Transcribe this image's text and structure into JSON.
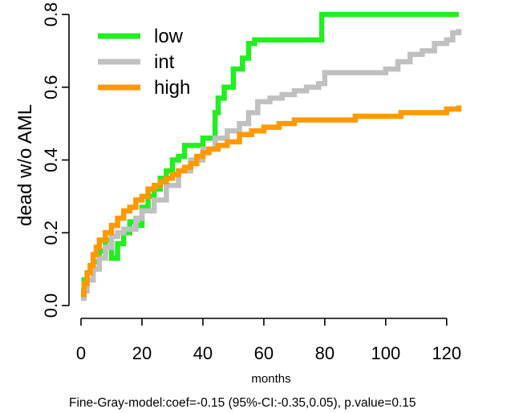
{
  "chart_data": {
    "type": "line",
    "step": true,
    "xlabel": "months",
    "ylabel": "dead w/o AML",
    "footnote": "Fine-Gray-model:coef=-0.15 (95%-CI:-0.35,0.05), p.value=0.15",
    "xlim": [
      0,
      124
    ],
    "ylim": [
      0,
      0.8
    ],
    "x_ticks": [
      0,
      20,
      40,
      60,
      80,
      100,
      120
    ],
    "y_ticks": [
      0.0,
      0.2,
      0.4,
      0.6,
      0.8
    ],
    "y_tick_labels": [
      "0.0",
      "0.2",
      "0.4",
      "0.6",
      "0.8"
    ],
    "legend_position": "top-left",
    "series": [
      {
        "name": "low",
        "color": "#22ee22",
        "x": [
          0,
          1,
          2,
          4,
          6,
          8,
          10,
          12,
          14,
          16,
          18,
          20,
          22,
          24,
          26,
          28,
          30,
          32,
          34,
          40,
          44,
          45,
          47,
          50,
          53,
          55,
          57,
          63,
          70,
          78,
          79,
          124
        ],
        "y": [
          0.04,
          0.07,
          0.09,
          0.12,
          0.15,
          0.18,
          0.13,
          0.17,
          0.2,
          0.23,
          0.22,
          0.27,
          0.3,
          0.32,
          0.35,
          0.37,
          0.4,
          0.41,
          0.44,
          0.46,
          0.53,
          0.57,
          0.6,
          0.65,
          0.68,
          0.72,
          0.73,
          0.73,
          0.73,
          0.73,
          0.8,
          0.8
        ]
      },
      {
        "name": "int",
        "color": "#c0c0c0",
        "x": [
          0,
          1,
          2,
          4,
          6,
          8,
          10,
          12,
          14,
          18,
          20,
          24,
          28,
          32,
          36,
          40,
          44,
          48,
          52,
          55,
          58,
          62,
          66,
          70,
          74,
          78,
          80,
          85,
          90,
          96,
          100,
          104,
          108,
          112,
          116,
          120,
          122,
          124
        ],
        "y": [
          0.02,
          0.04,
          0.07,
          0.1,
          0.13,
          0.16,
          0.19,
          0.2,
          0.21,
          0.24,
          0.26,
          0.29,
          0.33,
          0.37,
          0.4,
          0.43,
          0.46,
          0.48,
          0.5,
          0.53,
          0.56,
          0.57,
          0.58,
          0.59,
          0.6,
          0.61,
          0.64,
          0.64,
          0.64,
          0.64,
          0.65,
          0.67,
          0.69,
          0.7,
          0.72,
          0.73,
          0.75,
          0.76
        ]
      },
      {
        "name": "high",
        "color": "#ff9900",
        "x": [
          0,
          1,
          2,
          3,
          4,
          5,
          6,
          8,
          10,
          12,
          14,
          16,
          18,
          20,
          22,
          24,
          26,
          28,
          30,
          32,
          34,
          36,
          38,
          40,
          42,
          45,
          48,
          52,
          56,
          60,
          65,
          70,
          75,
          80,
          90,
          95,
          100,
          105,
          110,
          115,
          120,
          124
        ],
        "y": [
          0.03,
          0.06,
          0.09,
          0.11,
          0.14,
          0.16,
          0.18,
          0.2,
          0.22,
          0.24,
          0.26,
          0.27,
          0.29,
          0.3,
          0.32,
          0.33,
          0.34,
          0.35,
          0.36,
          0.37,
          0.38,
          0.39,
          0.41,
          0.42,
          0.43,
          0.44,
          0.45,
          0.47,
          0.48,
          0.49,
          0.5,
          0.51,
          0.51,
          0.51,
          0.52,
          0.52,
          0.52,
          0.53,
          0.53,
          0.53,
          0.54,
          0.55
        ]
      }
    ]
  }
}
